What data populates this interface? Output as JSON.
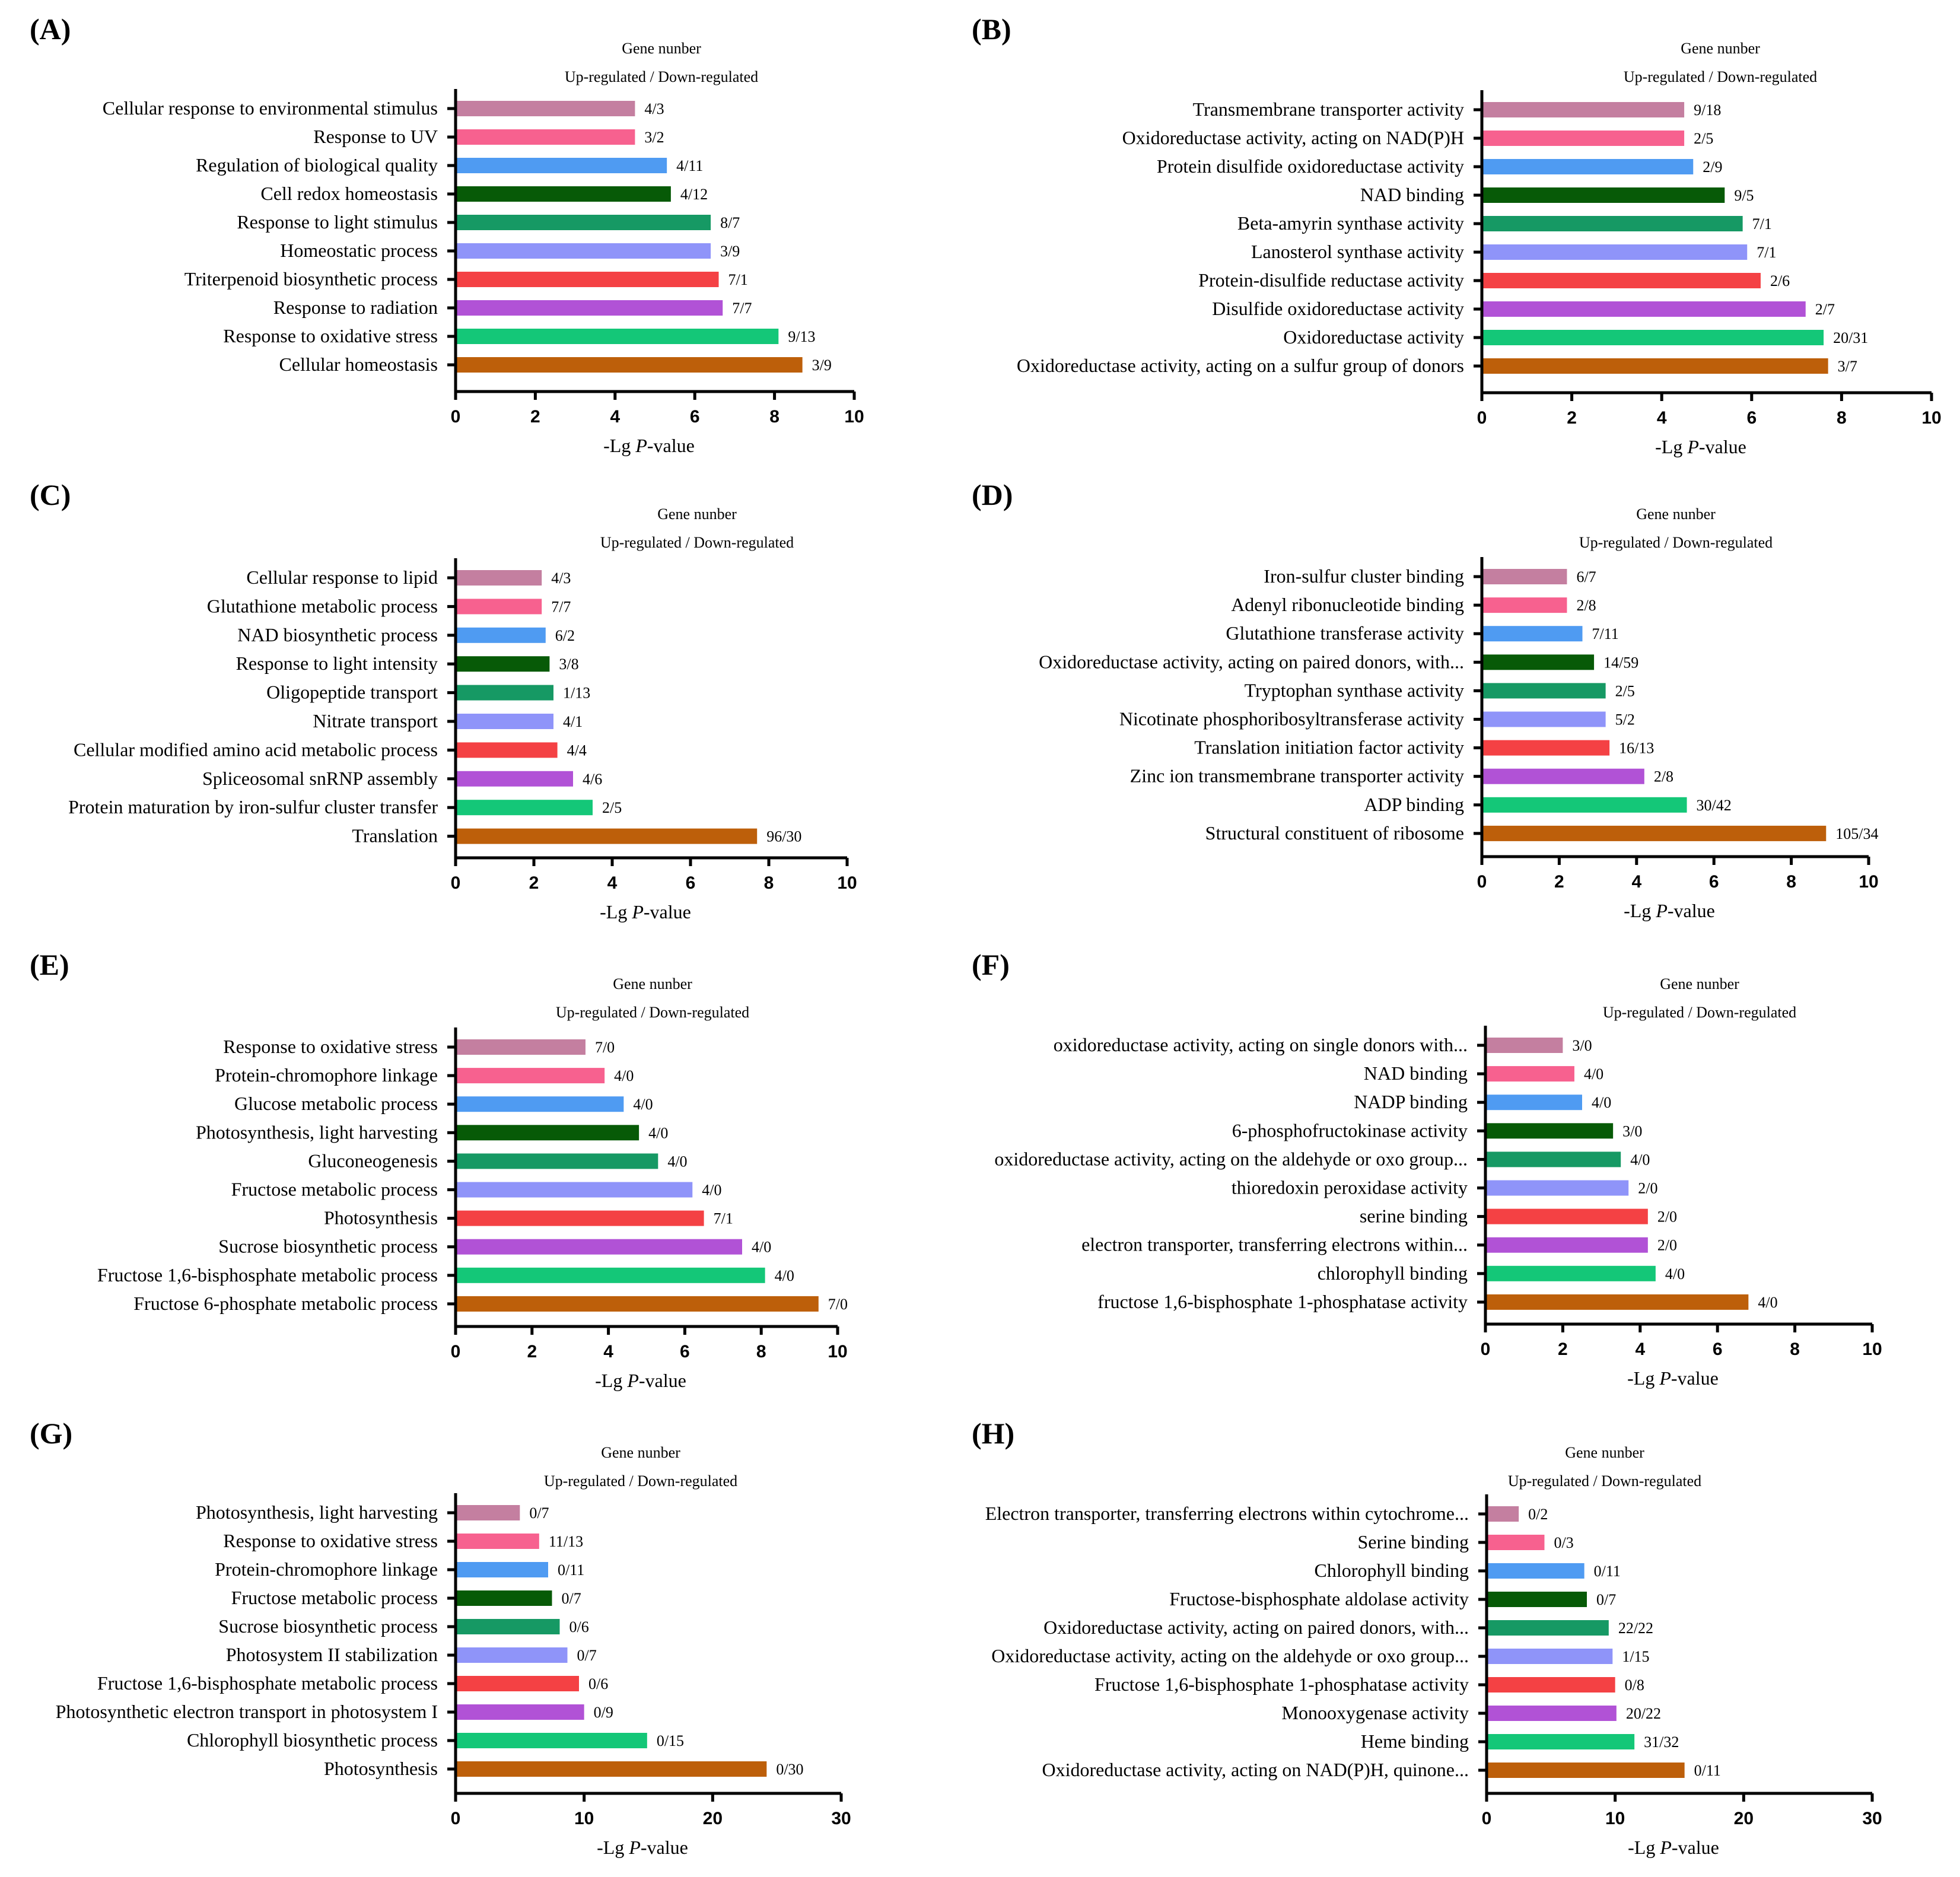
{
  "figure": {
    "header_title": "Gene nunber",
    "header_subtitle": "Up-regulated / Down-regulated",
    "xlabel_prefix": "-Lg ",
    "xlabel_italic": "P",
    "xlabel_suffix": "-value"
  },
  "colors": [
    "#c47fa0",
    "#f7618f",
    "#4f9bf2",
    "#075a07",
    "#169964",
    "#8f94f9",
    "#f44144",
    "#b152d6",
    "#14c778",
    "#bd5f0a"
  ],
  "chart_data": [
    {
      "id": "A",
      "panel_label": "(A)",
      "type": "bar",
      "orientation": "horizontal",
      "title": "Gene nunber",
      "subtitle": "Up-regulated / Down-regulated",
      "xlabel": "-Lg P-value",
      "xlim": [
        0,
        10
      ],
      "xticks": [
        0,
        2,
        4,
        6,
        8,
        10
      ],
      "categories": [
        "Cellular response to environmental stimulus",
        "Response to UV",
        "Regulation of biological quality",
        "Cell redox homeostasis",
        "Response to light stimulus",
        "Homeostatic process",
        "Triterpenoid biosynthetic process",
        "Response to radiation",
        "Response to oxidative stress",
        "Cellular homeostasis"
      ],
      "values": [
        4.5,
        4.5,
        5.3,
        5.4,
        6.4,
        6.4,
        6.6,
        6.7,
        8.1,
        8.7
      ],
      "labels": [
        "4/3",
        "3/2",
        "4/11",
        "4/12",
        "8/7",
        "3/9",
        "7/1",
        "7/7",
        "9/13",
        "3/9"
      ]
    },
    {
      "id": "B",
      "panel_label": "(B)",
      "type": "bar",
      "orientation": "horizontal",
      "title": "Gene nunber",
      "subtitle": "Up-regulated / Down-regulated",
      "xlabel": "-Lg P-value",
      "xlim": [
        0,
        10
      ],
      "xticks": [
        0,
        2,
        4,
        6,
        8,
        10
      ],
      "categories": [
        "Transmembrane transporter activity",
        "Oxidoreductase activity, acting on NAD(P)H",
        "Protein disulfide oxidoreductase activity",
        "NAD binding",
        "Beta-amyrin synthase activity",
        "Lanosterol synthase activity",
        "Protein-disulfide reductase activity",
        "Disulfide oxidoreductase activity",
        "Oxidoreductase activity",
        "Oxidoreductase activity, acting on a sulfur group of donors"
      ],
      "values": [
        4.5,
        4.5,
        4.7,
        5.4,
        5.8,
        5.9,
        6.2,
        7.2,
        7.6,
        7.7
      ],
      "labels": [
        "9/18",
        "2/5",
        "2/9",
        "9/5",
        "7/1",
        "7/1",
        "2/6",
        "2/7",
        "20/31",
        "3/7"
      ]
    },
    {
      "id": "C",
      "panel_label": "(C)",
      "type": "bar",
      "orientation": "horizontal",
      "title": "Gene nunber",
      "subtitle": "Up-regulated / Down-regulated",
      "xlabel": "-Lg P-value",
      "xlim": [
        0,
        10
      ],
      "xticks": [
        0,
        2,
        4,
        6,
        8,
        10
      ],
      "categories": [
        "Cellular response to lipid",
        "Glutathione metabolic process",
        "NAD biosynthetic process",
        "Response to light intensity",
        "Oligopeptide transport",
        "Nitrate transport",
        "Cellular modified amino acid metabolic process",
        "Spliceosomal snRNP assembly",
        "Protein maturation by iron-sulfur cluster transfer",
        "Translation"
      ],
      "values": [
        2.2,
        2.2,
        2.3,
        2.4,
        2.5,
        2.5,
        2.6,
        3.0,
        3.5,
        7.7
      ],
      "labels": [
        "4/3",
        "7/7",
        "6/2",
        "3/8",
        "1/13",
        "4/1",
        "4/4",
        "4/6",
        "2/5",
        "96/30"
      ]
    },
    {
      "id": "D",
      "panel_label": "(D)",
      "type": "bar",
      "orientation": "horizontal",
      "title": "Gene nunber",
      "subtitle": "Up-regulated / Down-regulated",
      "xlabel": "-Lg P-value",
      "xlim": [
        0,
        10
      ],
      "xticks": [
        0,
        2,
        4,
        6,
        8,
        10
      ],
      "categories": [
        "Iron-sulfur cluster binding",
        "Adenyl ribonucleotide binding",
        "Glutathione transferase activity",
        "Oxidoreductase activity, acting on paired donors, with...",
        "Tryptophan synthase activity",
        "Nicotinate phosphoribosyltransferase activity",
        "Translation initiation factor activity",
        "Zinc ion transmembrane transporter activity",
        "ADP binding",
        "Structural constituent of ribosome"
      ],
      "values": [
        2.2,
        2.2,
        2.6,
        2.9,
        3.2,
        3.2,
        3.3,
        4.2,
        5.3,
        8.9
      ],
      "labels": [
        "6/7",
        "2/8",
        "7/11",
        "14/59",
        "2/5",
        "5/2",
        "16/13",
        "2/8",
        "30/42",
        "105/34"
      ]
    },
    {
      "id": "E",
      "panel_label": "(E)",
      "type": "bar",
      "orientation": "horizontal",
      "title": "Gene nunber",
      "subtitle": "Up-regulated / Down-regulated",
      "xlabel": "-Lg P-value",
      "xlim": [
        0,
        10
      ],
      "xticks": [
        0,
        2,
        4,
        6,
        8,
        10
      ],
      "categories": [
        "Response to oxidative stress",
        "Protein-chromophore linkage",
        "Glucose metabolic process",
        "Photosynthesis, light harvesting",
        "Gluconeogenesis",
        "Fructose metabolic process",
        "Photosynthesis",
        "Sucrose biosynthetic process",
        "Fructose 1,6-bisphosphate metabolic process",
        "Fructose 6-phosphate metabolic process"
      ],
      "values": [
        3.4,
        3.9,
        4.4,
        4.8,
        5.3,
        6.2,
        6.5,
        7.5,
        8.1,
        9.5
      ],
      "labels": [
        "7/0",
        "4/0",
        "4/0",
        "4/0",
        "4/0",
        "4/0",
        "7/1",
        "4/0",
        "4/0",
        "7/0"
      ]
    },
    {
      "id": "F",
      "panel_label": "(F)",
      "type": "bar",
      "orientation": "horizontal",
      "title": "Gene nunber",
      "subtitle": "Up-regulated / Down-regulated",
      "xlabel": "-Lg P-value",
      "xlim": [
        0,
        10
      ],
      "xticks": [
        0,
        2,
        4,
        6,
        8,
        10
      ],
      "categories": [
        "oxidoreductase activity, acting on single donors with...",
        "NAD binding",
        "NADP binding",
        "6-phosphofructokinase activity",
        "oxidoreductase activity, acting on the aldehyde or oxo group...",
        "thioredoxin peroxidase activity",
        "serine binding",
        "electron transporter, transferring electrons within...",
        "chlorophyll binding",
        "fructose 1,6-bisphosphate 1-phosphatase activity"
      ],
      "values": [
        2.0,
        2.3,
        2.5,
        3.3,
        3.5,
        3.7,
        4.2,
        4.2,
        4.4,
        6.8
      ],
      "labels": [
        "3/0",
        "4/0",
        "4/0",
        "3/0",
        "4/0",
        "2/0",
        "2/0",
        "2/0",
        "4/0",
        "4/0"
      ]
    },
    {
      "id": "G",
      "panel_label": "(G)",
      "type": "bar",
      "orientation": "horizontal",
      "title": "Gene nunber",
      "subtitle": "Up-regulated / Down-regulated",
      "xlabel": "-Lg P-value",
      "xlim": [
        0,
        30
      ],
      "xticks": [
        0,
        10,
        20,
        30
      ],
      "categories": [
        "Photosynthesis, light harvesting",
        "Response to oxidative stress",
        "Protein-chromophore linkage",
        "Fructose metabolic process",
        "Sucrose biosynthetic process",
        "Photosystem II stabilization",
        "Fructose 1,6-bisphosphate metabolic process",
        "Photosynthetic electron transport in photosystem I",
        "Chlorophyll biosynthetic process",
        "Photosynthesis"
      ],
      "values": [
        5.0,
        6.5,
        7.2,
        7.5,
        8.1,
        8.7,
        9.6,
        10.0,
        14.9,
        24.2
      ],
      "labels": [
        "0/7",
        "11/13",
        "0/11",
        "0/7",
        "0/6",
        "0/7",
        "0/6",
        "0/9",
        "0/15",
        "0/30"
      ]
    },
    {
      "id": "H",
      "panel_label": "(H)",
      "type": "bar",
      "orientation": "horizontal",
      "title": "Gene nunber",
      "subtitle": "Up-regulated / Down-regulated",
      "xlabel": "-Lg P-value",
      "xlim": [
        0,
        30
      ],
      "xticks": [
        0,
        10,
        20,
        30
      ],
      "categories": [
        "Electron transporter, transferring electrons within cytochrome...",
        "Serine binding",
        "Chlorophyll binding",
        "Fructose-bisphosphate aldolase activity",
        "Oxidoreductase activity, acting on paired donors, with...",
        "Oxidoreductase activity, acting on the aldehyde or oxo group...",
        "Fructose 1,6-bisphosphate 1-phosphatase activity",
        "Monooxygenase activity",
        "Heme binding",
        "Oxidoreductase activity, acting on NAD(P)H, quinone..."
      ],
      "values": [
        2.5,
        4.5,
        7.6,
        7.8,
        9.5,
        9.8,
        10.0,
        10.1,
        11.5,
        15.4
      ],
      "labels": [
        "0/2",
        "0/3",
        "0/11",
        "0/7",
        "22/22",
        "1/15",
        "0/8",
        "20/22",
        "31/32",
        "0/11"
      ]
    }
  ]
}
